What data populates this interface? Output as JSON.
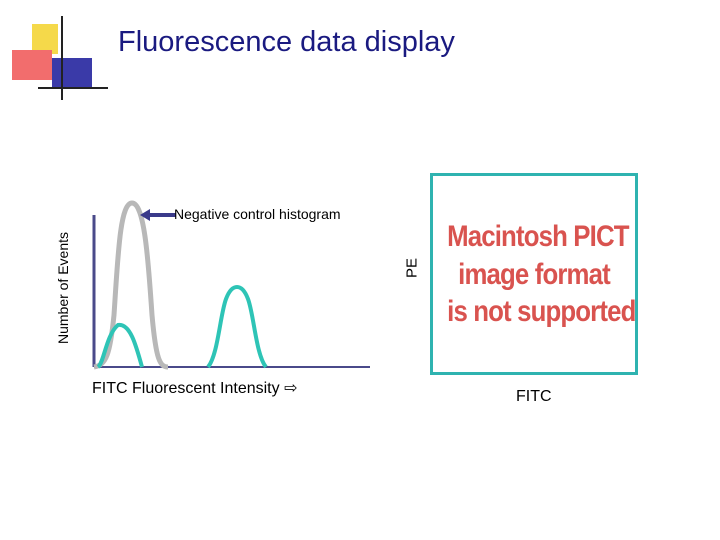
{
  "title": "Fluorescence data display",
  "histogram": {
    "ylabel": "Number of Events",
    "negative_control_label": "Negative control histogram",
    "xlabel": "FITC Fluorescent Intensity ⇨"
  },
  "dotplot": {
    "ylabel": "PE",
    "placeholder_lines": [
      "Macintosh PICT",
      "image format",
      "is not supported"
    ],
    "xlabel": "FITC"
  },
  "colors": {
    "title": "#1a1a80",
    "negative_curve": "#b8b8b8",
    "positive_curve": "#2ec4b6",
    "axis": "#4a4a8a",
    "frame": "#2fb3b0",
    "placeholder_text": "#d9534f"
  }
}
